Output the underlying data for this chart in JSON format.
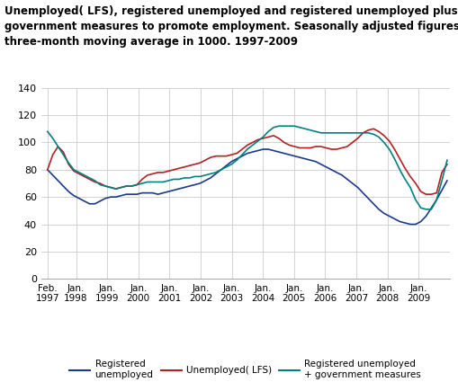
{
  "title_line1": "Unemployed( LFS), registered unemployed and registered unemployed plus",
  "title_line2": "government measures to promote employment. Seasonally adjusted figures,",
  "title_line3": "three-month moving average in 1000. 1997-2009",
  "title_fontsize": 8.5,
  "ylim": [
    0,
    140
  ],
  "yticks": [
    0,
    20,
    40,
    60,
    80,
    100,
    120,
    140
  ],
  "bg_color": "#ffffff",
  "grid_color": "#cccccc",
  "colors": {
    "registered": "#1a3a8a",
    "lfs": "#b22222",
    "reg_gov": "#008080"
  },
  "x_tick_labels": [
    "Feb.\n1997",
    "Jan.\n1998",
    "Jan.\n1999",
    "Jan.\n2000",
    "Jan.\n2001",
    "Jan.\n2002",
    "Jan.\n2003",
    "Jan.\n2004",
    "Jan.\n2005",
    "Jan.\n2006",
    "Jan.\n2007",
    "Jan.\n2008",
    "Jan.\n2009"
  ],
  "legend": [
    {
      "label": "Registered\nunemployed",
      "color": "#1a3a8a"
    },
    {
      "label": "Unemployed( LFS)",
      "color": "#b22222"
    },
    {
      "label": "Registered unemployed\n+ government measures",
      "color": "#008080"
    }
  ],
  "registered_unemployed": [
    80,
    76,
    72,
    68,
    64,
    61,
    59,
    57,
    55,
    55,
    57,
    59,
    60,
    60,
    61,
    62,
    62,
    62,
    63,
    63,
    63,
    62,
    63,
    64,
    65,
    66,
    67,
    68,
    69,
    70,
    72,
    74,
    77,
    80,
    83,
    86,
    88,
    90,
    92,
    93,
    94,
    95,
    95,
    94,
    93,
    92,
    91,
    90,
    89,
    88,
    87,
    86,
    84,
    82,
    80,
    78,
    76,
    73,
    70,
    67,
    63,
    59,
    55,
    51,
    48,
    46,
    44,
    42,
    41,
    40,
    40,
    42,
    46,
    52,
    58,
    65,
    72
  ],
  "lfs_unemployed": [
    80,
    91,
    97,
    93,
    84,
    79,
    77,
    75,
    73,
    71,
    70,
    68,
    67,
    66,
    67,
    68,
    68,
    69,
    73,
    76,
    77,
    78,
    78,
    79,
    80,
    81,
    82,
    83,
    84,
    85,
    87,
    89,
    90,
    90,
    90,
    91,
    92,
    95,
    98,
    100,
    102,
    103,
    104,
    105,
    103,
    100,
    98,
    97,
    96,
    96,
    96,
    97,
    97,
    96,
    95,
    95,
    96,
    97,
    100,
    103,
    107,
    109,
    110,
    108,
    105,
    101,
    95,
    88,
    81,
    75,
    70,
    64,
    62,
    62,
    63,
    78,
    84
  ],
  "reg_gov_unemployed": [
    108,
    103,
    97,
    91,
    85,
    80,
    78,
    76,
    74,
    72,
    69,
    68,
    67,
    66,
    67,
    68,
    68,
    69,
    70,
    71,
    71,
    71,
    71,
    72,
    73,
    73,
    74,
    74,
    75,
    75,
    76,
    77,
    78,
    80,
    82,
    84,
    87,
    91,
    95,
    98,
    101,
    104,
    108,
    111,
    112,
    112,
    112,
    112,
    111,
    110,
    109,
    108,
    107,
    107,
    107,
    107,
    107,
    107,
    107,
    107,
    107,
    107,
    106,
    104,
    100,
    95,
    88,
    80,
    73,
    67,
    58,
    52,
    51,
    51,
    58,
    72,
    87
  ]
}
